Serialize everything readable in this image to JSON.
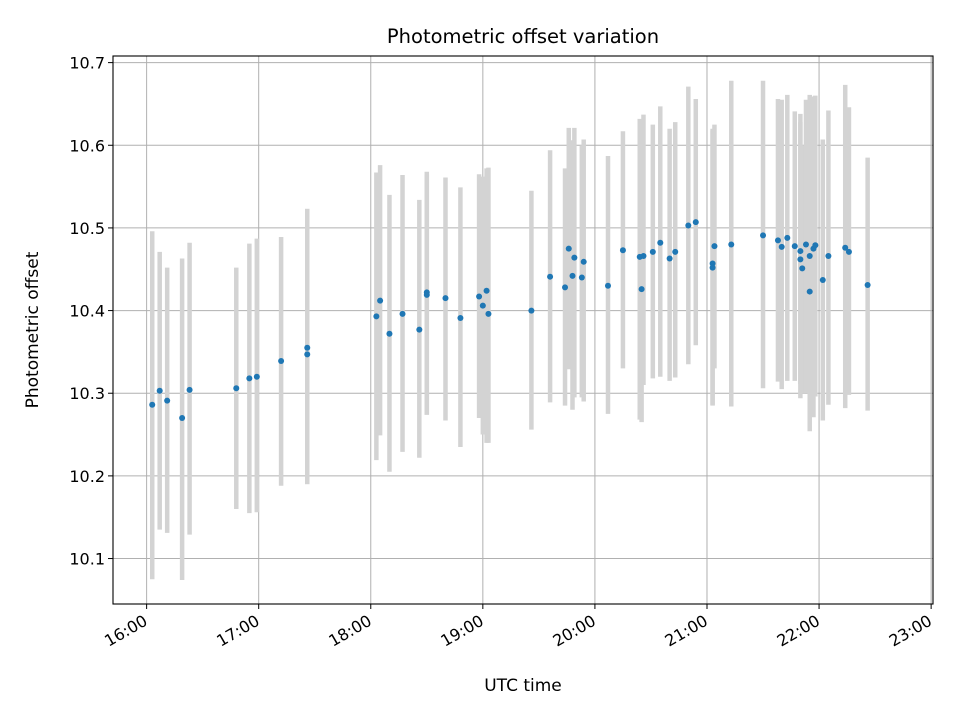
{
  "chart_data": {
    "type": "scatter",
    "title": "Photometric offset variation",
    "xlabel": "UTC time",
    "ylabel": "Photometric offset",
    "x_tick_labels": [
      "16:00",
      "17:00",
      "18:00",
      "19:00",
      "20:00",
      "21:00",
      "22:00",
      "23:00"
    ],
    "y_ticks": [
      10.1,
      10.2,
      10.3,
      10.4,
      10.5,
      10.6,
      10.7
    ],
    "xlim": [
      "15:42",
      "23:01"
    ],
    "ylim": [
      10.045,
      10.708
    ],
    "grid": true,
    "x": [
      "16:03",
      "16:07",
      "16:11",
      "16:19",
      "16:23",
      "16:48",
      "16:55",
      "16:59",
      "17:12",
      "17:26",
      "17:26",
      "18:03",
      "18:05",
      "18:10",
      "18:17",
      "18:26",
      "18:30",
      "18:30",
      "18:40",
      "18:48",
      "18:58",
      "19:00",
      "19:02",
      "19:03",
      "19:26",
      "19:36",
      "19:44",
      "19:46",
      "19:48",
      "19:49",
      "19:53",
      "19:54",
      "20:07",
      "20:15",
      "20:24",
      "20:25",
      "20:26",
      "20:31",
      "20:35",
      "20:40",
      "20:43",
      "20:50",
      "20:54",
      "21:03",
      "21:03",
      "21:04",
      "21:13",
      "21:30",
      "21:38",
      "21:40",
      "21:43",
      "21:47",
      "21:50",
      "21:50",
      "21:51",
      "21:53",
      "21:55",
      "21:55",
      "21:57",
      "21:58",
      "22:02",
      "22:05",
      "22:14",
      "22:16",
      "22:26"
    ],
    "y": [
      10.286,
      10.303,
      10.291,
      10.27,
      10.304,
      10.306,
      10.318,
      10.32,
      10.339,
      10.347,
      10.355,
      10.393,
      10.412,
      10.372,
      10.396,
      10.377,
      10.422,
      10.419,
      10.415,
      10.391,
      10.417,
      10.406,
      10.424,
      10.396,
      10.4,
      10.441,
      10.428,
      10.475,
      10.442,
      10.464,
      10.44,
      10.459,
      10.43,
      10.473,
      10.465,
      10.426,
      10.466,
      10.471,
      10.482,
      10.463,
      10.471,
      10.503,
      10.507,
      10.457,
      10.452,
      10.478,
      10.48,
      10.491,
      10.485,
      10.477,
      10.488,
      10.478,
      10.472,
      10.462,
      10.451,
      10.48,
      10.423,
      10.466,
      10.475,
      10.479,
      10.437,
      10.466,
      10.476,
      10.471,
      10.431
    ],
    "err_low": [
      10.075,
      10.135,
      10.131,
      10.074,
      10.129,
      10.16,
      10.155,
      10.156,
      10.188,
      10.19,
      10.19,
      10.219,
      10.249,
      10.205,
      10.229,
      10.222,
      10.274,
      10.274,
      10.267,
      10.235,
      10.27,
      10.25,
      10.24,
      10.24,
      10.256,
      10.289,
      10.285,
      10.329,
      10.28,
      10.295,
      10.295,
      10.29,
      10.275,
      10.33,
      10.268,
      10.265,
      10.31,
      10.318,
      10.32,
      10.315,
      10.319,
      10.335,
      10.358,
      10.285,
      10.286,
      10.33,
      10.284,
      10.306,
      10.314,
      10.305,
      10.315,
      10.315,
      10.311,
      10.294,
      10.3,
      10.3,
      10.254,
      10.3,
      10.271,
      10.296,
      10.267,
      10.286,
      10.282,
      10.298,
      10.279
    ],
    "err_high": [
      10.496,
      10.471,
      10.452,
      10.463,
      10.482,
      10.452,
      10.481,
      10.487,
      10.489,
      10.523,
      10.523,
      10.567,
      10.576,
      10.54,
      10.564,
      10.534,
      10.568,
      10.565,
      10.561,
      10.549,
      10.565,
      10.562,
      10.572,
      10.573,
      10.545,
      10.594,
      10.572,
      10.621,
      10.606,
      10.621,
      10.6,
      10.607,
      10.587,
      10.617,
      10.632,
      10.597,
      10.637,
      10.625,
      10.647,
      10.62,
      10.628,
      10.671,
      10.656,
      10.62,
      10.618,
      10.625,
      10.678,
      10.678,
      10.656,
      10.655,
      10.661,
      10.641,
      10.638,
      10.628,
      10.6,
      10.655,
      10.592,
      10.661,
      10.659,
      10.66,
      10.607,
      10.642,
      10.673,
      10.646,
      10.585
    ],
    "marker_color": "#1f77b4",
    "errorbar_color": "#d3d3d3",
    "grid_color": "#b0b0b0"
  }
}
